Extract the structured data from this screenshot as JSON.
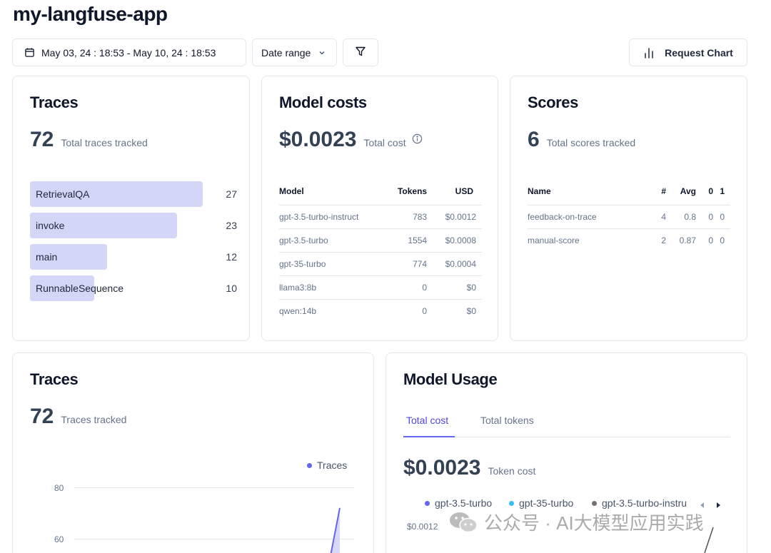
{
  "app": {
    "title": "my-langfuse-app"
  },
  "toolbar": {
    "date_range_value": "May 03, 24 : 18:53 - May 10, 24 : 18:53",
    "date_range_preset": "Date range",
    "request_chart_label": "Request Chart"
  },
  "traces_card": {
    "title": "Traces",
    "count": "72",
    "count_label": "Total traces tracked",
    "max": 27,
    "items": [
      {
        "name": "RetrievalQA",
        "value": 27
      },
      {
        "name": "invoke",
        "value": 23
      },
      {
        "name": "main",
        "value": 12
      },
      {
        "name": "RunnableSequence",
        "value": 10
      }
    ]
  },
  "model_costs_card": {
    "title": "Model costs",
    "total": "$0.0023",
    "total_label": "Total cost",
    "columns": [
      "Model",
      "Tokens",
      "USD"
    ],
    "rows": [
      {
        "model": "gpt-3.5-turbo-instruct",
        "tokens": "783",
        "usd": "$0.0012"
      },
      {
        "model": "gpt-3.5-turbo",
        "tokens": "1554",
        "usd": "$0.0008"
      },
      {
        "model": "gpt-35-turbo",
        "tokens": "774",
        "usd": "$0.0004"
      },
      {
        "model": "llama3:8b",
        "tokens": "0",
        "usd": "$0"
      },
      {
        "model": "qwen:14b",
        "tokens": "0",
        "usd": "$0"
      }
    ]
  },
  "scores_card": {
    "title": "Scores",
    "count": "6",
    "count_label": "Total scores tracked",
    "columns": [
      "Name",
      "#",
      "Avg",
      "0",
      "1"
    ],
    "rows": [
      {
        "name": "feedback-on-trace",
        "count": "4",
        "avg": "0.8",
        "zero": "0",
        "one": "0"
      },
      {
        "name": "manual-score",
        "count": "2",
        "avg": "0.87",
        "zero": "0",
        "one": "0"
      }
    ]
  },
  "traces_chart_card": {
    "title": "Traces",
    "count": "72",
    "count_label": "Traces tracked",
    "legend": "Traces",
    "color": "#6366f1"
  },
  "chart_data": {
    "type": "area",
    "series": [
      {
        "name": "Traces",
        "color": "#6366f1"
      }
    ],
    "y_ticks": [
      "80",
      "60"
    ],
    "y_tick_values": [
      80,
      60
    ],
    "visible_segment": {
      "y_start": 52,
      "y_end": 72
    }
  },
  "model_usage_card": {
    "title": "Model Usage",
    "tabs": [
      {
        "label": "Total cost",
        "active": true
      },
      {
        "label": "Total tokens",
        "active": false
      }
    ],
    "total": "$0.0023",
    "total_label": "Token cost",
    "legend": [
      {
        "name": "gpt-3.5-turbo",
        "color": "#6366f1"
      },
      {
        "name": "gpt-35-turbo",
        "color": "#38bdf8"
      },
      {
        "name": "gpt-3.5-turbo-instru",
        "color": "#737373"
      }
    ],
    "y_tick": "$0.0012"
  },
  "watermark": {
    "text": "公众号 · AI大模型应用实践"
  }
}
